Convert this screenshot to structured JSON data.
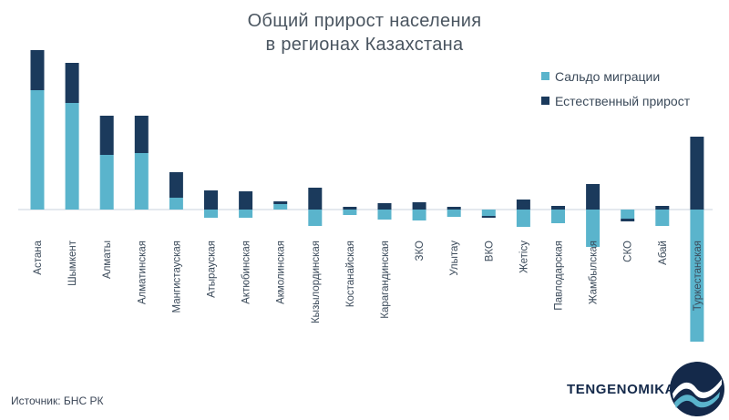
{
  "chart_data": {
    "type": "bar",
    "stacked": true,
    "title_line1": "Общий прирост населения",
    "title_line2": "в регионах Казахстана",
    "categories": [
      "Астана",
      "Шымкент",
      "Алматы",
      "Алматинская",
      "Мангистауская",
      "Атырауская",
      "Актюбинская",
      "Акмолинская",
      "Кызылординская",
      "Костанайская",
      "Карагандинская",
      "ЗКО",
      "Улытау",
      "ВКО",
      "Жетiсу",
      "Павлодарская",
      "Жамбылская",
      "СКО",
      "Абай",
      "Туркестанская"
    ],
    "series": [
      {
        "name": "Сальдо миграции",
        "color": "#5ab4cc",
        "values": [
          131,
          117,
          60,
          62,
          13,
          -9,
          -9,
          6,
          -18,
          -6,
          -11,
          -12,
          -8,
          -7,
          -19,
          -15,
          -41,
          -10,
          -18,
          -145
        ]
      },
      {
        "name": "Естественный прирост",
        "color": "#1b3a5c",
        "values": [
          44,
          44,
          43,
          41,
          28,
          21,
          20,
          3,
          24,
          3,
          7,
          8,
          3,
          -2,
          11,
          4,
          28,
          -3,
          4,
          80
        ]
      }
    ],
    "grid": false,
    "legend_position": "top-right"
  },
  "footer": {
    "source": "Источник: БНС РК",
    "brand": "TENGENOMIKA"
  }
}
